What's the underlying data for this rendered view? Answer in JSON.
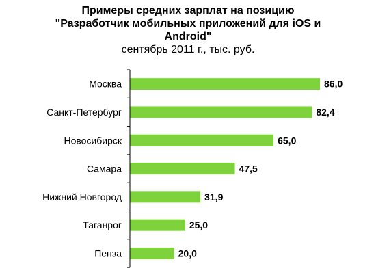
{
  "chart_data": {
    "type": "bar",
    "orientation": "horizontal",
    "title_lines": [
      "Примеры средних зарплат на позицию",
      "\"Разработчик мобильных приложений для iOS и",
      "Android\""
    ],
    "subtitle": "сентябрь 2011 г., тыс. руб.",
    "categories": [
      "Москва",
      "Санкт-Петербург",
      "Новосибирск",
      "Самара",
      "Нижний Новгород",
      "Таганрог",
      "Пенза"
    ],
    "values": [
      86.0,
      82.4,
      65.0,
      47.5,
      31.9,
      25.0,
      20.0
    ],
    "value_labels": [
      "86,0",
      "82,4",
      "65,0",
      "47,5",
      "31,9",
      "25,0",
      "20,0"
    ],
    "bar_color": "#7ed23c",
    "xlim": [
      0,
      86
    ],
    "grid": false,
    "legend": "none"
  }
}
